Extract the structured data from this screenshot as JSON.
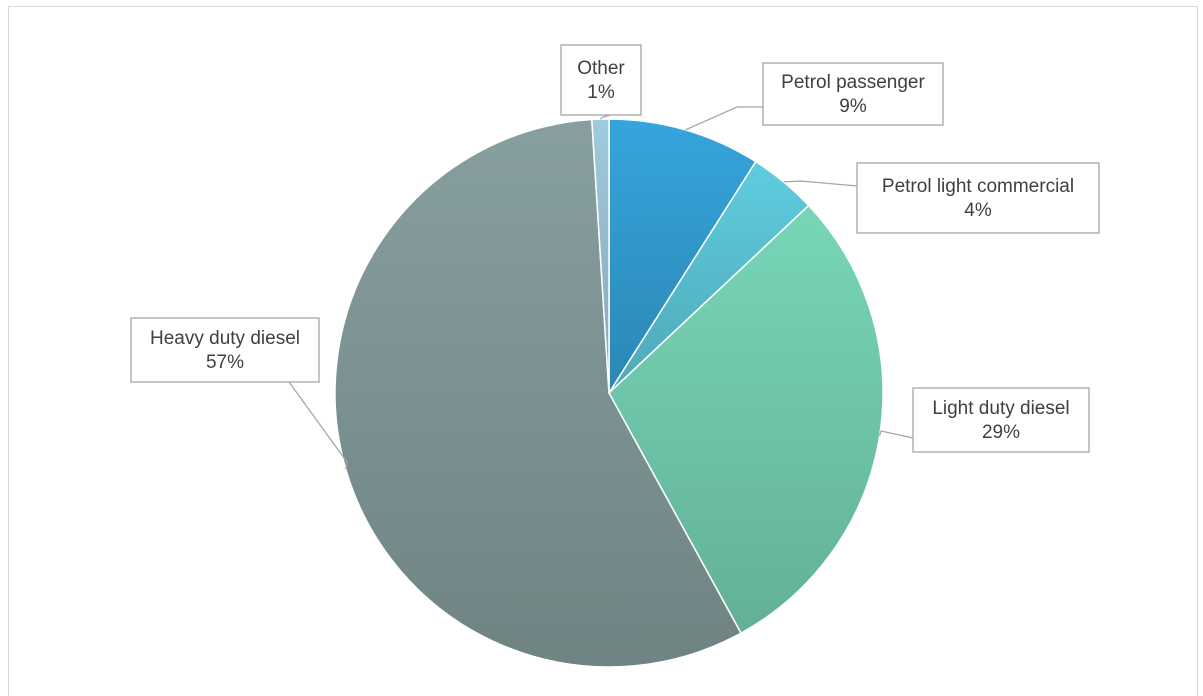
{
  "chart_data": {
    "type": "pie",
    "title": "",
    "legend": "none",
    "slices": [
      {
        "label": "Petrol passenger",
        "value": 9,
        "value_text": "9%",
        "color": "#2f93c4"
      },
      {
        "label": "Petrol light commercial",
        "value": 4,
        "value_text": "4%",
        "color": "#55b7c7"
      },
      {
        "label": "Light duty diesel",
        "value": 29,
        "value_text": "29%",
        "color": "#6bbfa4"
      },
      {
        "label": "Heavy duty diesel",
        "value": 57,
        "value_text": "57%",
        "color": "#798e8e"
      },
      {
        "label": "Other",
        "value": 1,
        "value_text": "1%",
        "color": "#8fb5c6"
      }
    ]
  }
}
